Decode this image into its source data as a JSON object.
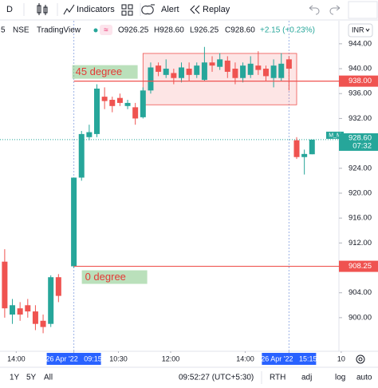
{
  "toolbar": {
    "interval": "D",
    "indicators": "Indicators",
    "alert": "Alert",
    "replay": "Replay"
  },
  "legend": {
    "interval": "5",
    "exchange": "NSE",
    "source": "TradingView",
    "badge": "≈",
    "ohlc": [
      "O926.25",
      "H928.60",
      "L926.25",
      "C928.60"
    ],
    "change": "+2.15 (+0.23%)",
    "currency": "INR"
  },
  "chart_data": {
    "type": "candlestick",
    "up_color": "#26a69a",
    "down_color": "#ef5350",
    "x": [
      0,
      1,
      2,
      3,
      4,
      5,
      6,
      7,
      9,
      10,
      11,
      12,
      13,
      14,
      15,
      16,
      17,
      18,
      19,
      20,
      21,
      22,
      23,
      24,
      25,
      26,
      27,
      28,
      29,
      30,
      31,
      32,
      33,
      34,
      35,
      36,
      37,
      38,
      39,
      40
    ],
    "open": [
      909,
      900.5,
      901.5,
      902,
      901,
      899.5,
      899,
      906.5,
      908.25,
      922.5,
      929,
      929.5,
      935.5,
      935,
      935.3,
      934,
      933.8,
      932.2,
      936.5,
      940.5,
      939,
      939.3,
      938.5,
      940,
      939,
      938.2,
      941,
      940.3,
      941.3,
      940,
      938.5,
      939,
      940.5,
      940,
      938.5,
      938.5,
      941.5,
      928.5,
      925.8,
      926.25
    ],
    "high": [
      911,
      903,
      902.5,
      903,
      902,
      900.5,
      906.8,
      907,
      922.5,
      930,
      931,
      937.5,
      937,
      935.5,
      936,
      935,
      934.5,
      937,
      941,
      941,
      941.5,
      940,
      941,
      941,
      941,
      943.5,
      942,
      942.5,
      942,
      941,
      941,
      942,
      942.8,
      940.5,
      941.5,
      942.5,
      942,
      929,
      927,
      928.6
    ],
    "low": [
      900,
      899,
      899.5,
      900,
      898,
      897.5,
      898.5,
      902.5,
      908,
      922,
      928.5,
      929,
      933.5,
      933,
      934,
      933.5,
      931,
      932,
      936,
      938.8,
      938.5,
      937.5,
      937.8,
      938,
      938.5,
      938,
      939.5,
      939.8,
      938.5,
      937.5,
      937.8,
      938.5,
      939,
      938,
      937,
      938,
      936.5,
      925.5,
      923,
      926.25
    ],
    "close": [
      901.5,
      902,
      900.5,
      901,
      899,
      898.5,
      906.5,
      903.5,
      922.5,
      929.5,
      929.8,
      936.8,
      934.8,
      934,
      934.5,
      934.5,
      932,
      936.5,
      940.2,
      939.5,
      940,
      938.5,
      940.2,
      939,
      940.5,
      941,
      940.5,
      941.5,
      939.5,
      938.5,
      940.5,
      940.8,
      939.8,
      938.8,
      940.5,
      940.8,
      940,
      925.8,
      926.3,
      928.6
    ],
    "xlim": [
      -0.3,
      43.5
    ],
    "xticks": [
      {
        "value": 1.5,
        "label": "14:00"
      },
      {
        "value": 9,
        "label": "26 Apr '22   09:15"
      },
      {
        "value": 14.8,
        "label": "10:30"
      },
      {
        "value": 21.6,
        "label": "12:00"
      },
      {
        "value": 31.3,
        "label": "14:00"
      },
      {
        "value": 37,
        "label": "26 Apr '22   15:15"
      },
      {
        "value": 43.8,
        "label": "10"
      }
    ],
    "ylim": [
      894.6,
      947.7
    ],
    "yticks": [
      {
        "value": 944,
        "label": "944.00"
      },
      {
        "value": 940,
        "label": "940.00"
      },
      {
        "value": 936,
        "label": "936.00"
      },
      {
        "value": 932,
        "label": "932.00"
      },
      {
        "value": 924,
        "label": "924.00"
      },
      {
        "value": 920,
        "label": "920.00"
      },
      {
        "value": 916,
        "label": "916.00"
      },
      {
        "value": 912,
        "label": "912.00"
      },
      {
        "value": 904,
        "label": "904.00"
      },
      {
        "value": 900,
        "label": "900.00"
      }
    ],
    "hlines": [
      {
        "value": 938,
        "label": "938.00",
        "from": 9,
        "text": "45 degree"
      },
      {
        "value": 908.25,
        "label": "908.25",
        "from": 9,
        "text": "0 degree"
      }
    ],
    "rectangle": {
      "x": [
        18,
        38
      ],
      "y": [
        934.2,
        942.45
      ]
    },
    "vlines": [
      9,
      37
    ],
    "last_price": {
      "value": 928.6,
      "label": "928.60",
      "countdown": "07:32",
      "name": "M_M"
    }
  },
  "footer": {
    "ranges": [
      "1Y",
      "5Y",
      "All"
    ],
    "clock": "09:52:27 (UTC+5:30)",
    "options": [
      "RTH",
      "adj",
      "log",
      "auto"
    ]
  }
}
